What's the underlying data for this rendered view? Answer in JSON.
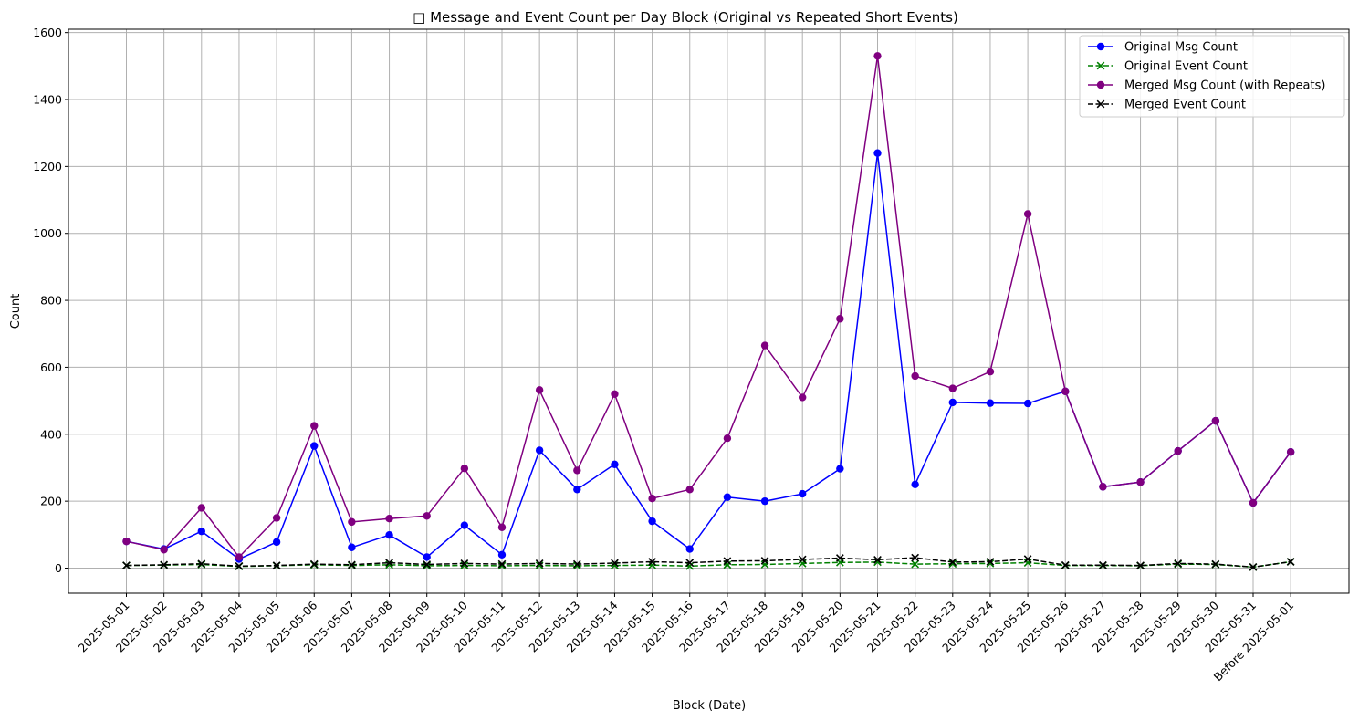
{
  "chart_data": {
    "type": "line",
    "title": "□ Message and Event Count per Day Block (Original vs Repeated Short Events)",
    "xlabel": "Block (Date)",
    "ylabel": "Count",
    "ylim": [
      -75,
      1610
    ],
    "yticks": [
      0,
      200,
      400,
      600,
      800,
      1000,
      1200,
      1400,
      1600
    ],
    "grid": true,
    "legend_position": "top-right",
    "categories": [
      "2025-05-01",
      "2025-05-02",
      "2025-05-03",
      "2025-05-04",
      "2025-05-05",
      "2025-05-06",
      "2025-05-07",
      "2025-05-08",
      "2025-05-09",
      "2025-05-10",
      "2025-05-11",
      "2025-05-12",
      "2025-05-13",
      "2025-05-14",
      "2025-05-15",
      "2025-05-16",
      "2025-05-17",
      "2025-05-18",
      "2025-05-19",
      "2025-05-20",
      "2025-05-21",
      "2025-05-22",
      "2025-05-23",
      "2025-05-24",
      "2025-05-25",
      "2025-05-26",
      "2025-05-27",
      "2025-05-28",
      "2025-05-29",
      "2025-05-30",
      "2025-05-31",
      "Before 2025-05-01"
    ],
    "series": [
      {
        "name": "Original Msg Count",
        "color": "#0000ff",
        "style": "solid",
        "marker": "circle",
        "values": [
          80,
          57,
          110,
          27,
          78,
          365,
          62,
          99,
          33,
          128,
          40,
          352,
          235,
          310,
          140,
          57,
          212,
          200,
          222,
          297,
          1240,
          250,
          495,
          493,
          492,
          528,
          243,
          257,
          350,
          440,
          195,
          347
        ]
      },
      {
        "name": "Original Event Count",
        "color": "#008000",
        "style": "dashed",
        "marker": "x",
        "values": [
          8,
          9,
          11,
          5,
          7,
          10,
          8,
          10,
          7,
          8,
          7,
          8,
          7,
          8,
          9,
          6,
          10,
          11,
          14,
          17,
          18,
          12,
          13,
          14,
          16,
          8,
          8,
          7,
          12,
          11,
          3,
          19
        ]
      },
      {
        "name": "Merged Msg Count (with Repeats)",
        "color": "#800080",
        "style": "solid",
        "marker": "circle",
        "values": [
          80,
          55,
          180,
          33,
          150,
          425,
          138,
          148,
          156,
          298,
          122,
          532,
          292,
          520,
          208,
          235,
          388,
          665,
          510,
          745,
          1530,
          574,
          537,
          587,
          1058,
          528,
          243,
          257,
          350,
          440,
          195,
          347
        ]
      },
      {
        "name": "Merged Event Count",
        "color": "#000000",
        "style": "dashed",
        "marker": "x",
        "values": [
          8,
          10,
          13,
          6,
          8,
          12,
          10,
          16,
          11,
          14,
          12,
          14,
          12,
          15,
          19,
          16,
          21,
          22,
          26,
          30,
          25,
          31,
          18,
          19,
          27,
          9,
          9,
          8,
          14,
          12,
          3,
          19
        ]
      }
    ]
  }
}
